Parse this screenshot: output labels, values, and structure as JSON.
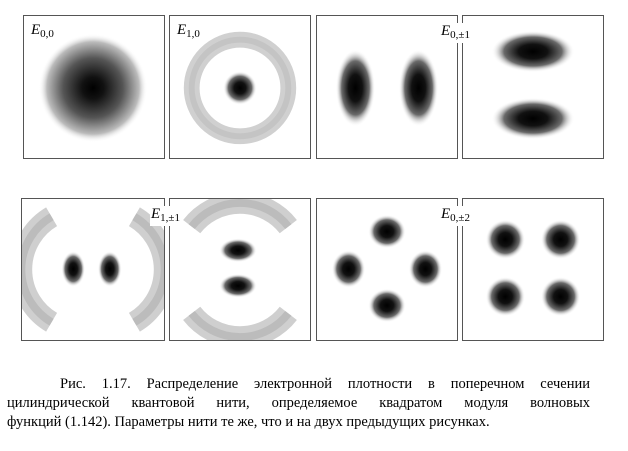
{
  "panels": [
    {
      "label_main": "E",
      "label_sub": "0,0"
    },
    {
      "label_main": "E",
      "label_sub": "1,0"
    },
    {
      "label_main": "E",
      "label_sub": "0,±1"
    },
    {
      "label_main": "E",
      "label_sub": "1,±1"
    },
    {
      "label_main": "E",
      "label_sub": "0,±2"
    }
  ],
  "caption": {
    "line1": "Рис. 1.17. Распределение электронной плотности в поперечном сечении",
    "line2": "цилиндрической квантовой нити, определяемое квадратом модуля волновых",
    "line3": "функций (1.142). Параметры нити те же, что и на двух предыдущих рисунках."
  }
}
